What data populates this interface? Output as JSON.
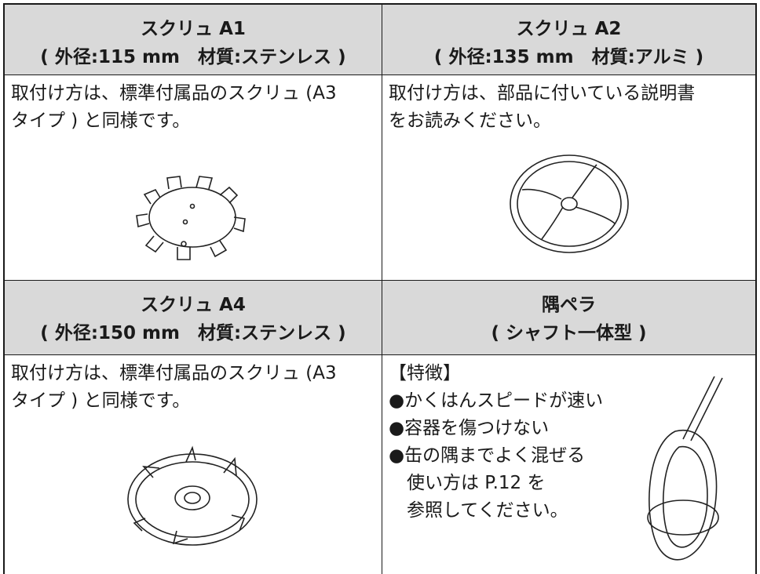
{
  "table": {
    "sections": [
      {
        "headers": [
          [
            "スクリュ A1",
            "( 外径:115 mm　材質:ステンレス )"
          ],
          [
            "スクリュ A2",
            "( 外径:135 mm　材質:アルミ )"
          ]
        ],
        "bodies": [
          [
            "取付け方は、標準付属品のスクリュ (A3",
            "タイプ ) と同様です。"
          ],
          [
            "取付け方は、部品に付いている説明書",
            "をお読みください。"
          ]
        ]
      },
      {
        "headers": [
          [
            "スクリュ A4",
            "( 外径:150 mm　材質:ステンレス )"
          ],
          [
            "隅ペラ",
            "( シャフト一体型 )"
          ]
        ],
        "bodies": [
          [
            "取付け方は、標準付属品のスクリュ (A3",
            "タイプ ) と同様です。"
          ],
          [
            "【特徴】",
            "●かくはんスピードが速い",
            "●容器を傷つけない",
            "●缶の隅までよく混ぜる",
            "　使い方は P.12 を",
            "　参照してください。"
          ]
        ]
      }
    ]
  }
}
